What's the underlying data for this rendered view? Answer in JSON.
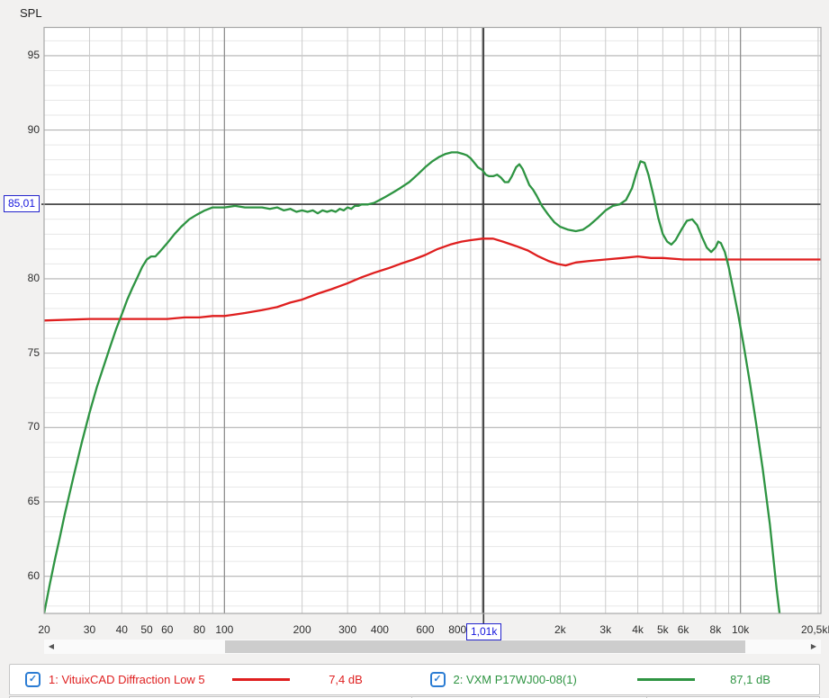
{
  "chart_data": {
    "type": "line",
    "title": "SPL",
    "x_axis": {
      "scale": "log",
      "unit": "Hz",
      "min": 20,
      "max": 20500,
      "tick_labels": [
        {
          "f": 20,
          "label": "20"
        },
        {
          "f": 30,
          "label": "30"
        },
        {
          "f": 40,
          "label": "40"
        },
        {
          "f": 50,
          "label": "50"
        },
        {
          "f": 60,
          "label": "60"
        },
        {
          "f": 80,
          "label": "80"
        },
        {
          "f": 100,
          "label": "100"
        },
        {
          "f": 200,
          "label": "200"
        },
        {
          "f": 300,
          "label": "300"
        },
        {
          "f": 400,
          "label": "400"
        },
        {
          "f": 600,
          "label": "600"
        },
        {
          "f": 800,
          "label": "800"
        },
        {
          "f": 2000,
          "label": "2k"
        },
        {
          "f": 3000,
          "label": "3k"
        },
        {
          "f": 4000,
          "label": "4k"
        },
        {
          "f": 5000,
          "label": "5k"
        },
        {
          "f": 6000,
          "label": "6k"
        },
        {
          "f": 8000,
          "label": "8k"
        },
        {
          "f": 10000,
          "label": "10k"
        },
        {
          "f": 20500,
          "label": "20,5kHz"
        }
      ],
      "major_gridlines": [
        100,
        1000,
        10000
      ]
    },
    "y_axis": {
      "label": "SPL",
      "min": 57.5,
      "max": 96.9,
      "minor_step": 1,
      "major_step": 5,
      "tick_labels": [
        {
          "v": 95,
          "label": "95"
        },
        {
          "v": 90,
          "label": "90"
        },
        {
          "v": 80,
          "label": "80"
        },
        {
          "v": 75,
          "label": "75"
        },
        {
          "v": 70,
          "label": "70"
        },
        {
          "v": 65,
          "label": "65"
        },
        {
          "v": 60,
          "label": "60"
        }
      ]
    },
    "crosshair": {
      "freq": 1010,
      "freq_label": "1,01k",
      "spl": 85.01,
      "spl_label": "85,01",
      "color": "#3c3c3c"
    },
    "series": [
      {
        "id": "1",
        "name": "1: VituixCAD Diffraction Low 5",
        "color": "#df1f1f",
        "value": "7,4 dB",
        "checked": true,
        "points": [
          [
            20,
            77.2
          ],
          [
            30,
            77.3
          ],
          [
            40,
            77.3
          ],
          [
            50,
            77.3
          ],
          [
            60,
            77.3
          ],
          [
            70,
            77.4
          ],
          [
            80,
            77.4
          ],
          [
            90,
            77.5
          ],
          [
            100,
            77.5
          ],
          [
            110,
            77.6
          ],
          [
            120,
            77.7
          ],
          [
            140,
            77.9
          ],
          [
            160,
            78.1
          ],
          [
            180,
            78.4
          ],
          [
            200,
            78.6
          ],
          [
            230,
            79.0
          ],
          [
            260,
            79.3
          ],
          [
            300,
            79.7
          ],
          [
            340,
            80.1
          ],
          [
            380,
            80.4
          ],
          [
            430,
            80.7
          ],
          [
            480,
            81.0
          ],
          [
            540,
            81.3
          ],
          [
            600,
            81.6
          ],
          [
            670,
            82.0
          ],
          [
            750,
            82.3
          ],
          [
            830,
            82.5
          ],
          [
            900,
            82.6
          ],
          [
            1000,
            82.7
          ],
          [
            1100,
            82.7
          ],
          [
            1200,
            82.5
          ],
          [
            1350,
            82.2
          ],
          [
            1500,
            81.9
          ],
          [
            1650,
            81.5
          ],
          [
            1800,
            81.2
          ],
          [
            1950,
            81.0
          ],
          [
            2100,
            80.9
          ],
          [
            2300,
            81.1
          ],
          [
            2600,
            81.2
          ],
          [
            3000,
            81.3
          ],
          [
            3500,
            81.4
          ],
          [
            4000,
            81.5
          ],
          [
            4500,
            81.4
          ],
          [
            5000,
            81.4
          ],
          [
            6000,
            81.3
          ],
          [
            7000,
            81.3
          ],
          [
            8000,
            81.3
          ],
          [
            9000,
            81.3
          ],
          [
            10000,
            81.3
          ],
          [
            12000,
            81.3
          ],
          [
            15000,
            81.3
          ],
          [
            20500,
            81.3
          ]
        ]
      },
      {
        "id": "2",
        "name": "2: VXM P17WJ00-08(1)",
        "color": "#2e9442",
        "value": "87,1 dB",
        "checked": true,
        "points": [
          [
            20,
            57.5
          ],
          [
            21,
            59.4
          ],
          [
            22,
            61.1
          ],
          [
            23,
            62.6
          ],
          [
            24,
            64.1
          ],
          [
            26,
            66.7
          ],
          [
            28,
            69.0
          ],
          [
            30,
            71.0
          ],
          [
            32,
            72.7
          ],
          [
            34,
            74.1
          ],
          [
            36,
            75.4
          ],
          [
            38,
            76.6
          ],
          [
            40,
            77.6
          ],
          [
            42,
            78.6
          ],
          [
            44,
            79.4
          ],
          [
            46,
            80.1
          ],
          [
            48,
            80.8
          ],
          [
            50,
            81.3
          ],
          [
            52,
            81.5
          ],
          [
            54,
            81.5
          ],
          [
            56,
            81.8
          ],
          [
            60,
            82.4
          ],
          [
            64,
            83.0
          ],
          [
            68,
            83.5
          ],
          [
            73,
            84.0
          ],
          [
            78,
            84.3
          ],
          [
            84,
            84.6
          ],
          [
            90,
            84.8
          ],
          [
            100,
            84.8
          ],
          [
            110,
            84.9
          ],
          [
            120,
            84.8
          ],
          [
            130,
            84.8
          ],
          [
            140,
            84.8
          ],
          [
            150,
            84.7
          ],
          [
            160,
            84.8
          ],
          [
            170,
            84.6
          ],
          [
            180,
            84.7
          ],
          [
            190,
            84.5
          ],
          [
            200,
            84.6
          ],
          [
            210,
            84.5
          ],
          [
            220,
            84.6
          ],
          [
            230,
            84.4
          ],
          [
            240,
            84.6
          ],
          [
            250,
            84.5
          ],
          [
            260,
            84.6
          ],
          [
            270,
            84.5
          ],
          [
            280,
            84.7
          ],
          [
            290,
            84.6
          ],
          [
            300,
            84.8
          ],
          [
            310,
            84.7
          ],
          [
            320,
            84.9
          ],
          [
            330,
            84.9
          ],
          [
            340,
            85.0
          ],
          [
            360,
            85.0
          ],
          [
            380,
            85.1
          ],
          [
            400,
            85.3
          ],
          [
            420,
            85.5
          ],
          [
            450,
            85.8
          ],
          [
            480,
            86.1
          ],
          [
            520,
            86.5
          ],
          [
            560,
            87.0
          ],
          [
            600,
            87.5
          ],
          [
            640,
            87.9
          ],
          [
            680,
            88.2
          ],
          [
            720,
            88.4
          ],
          [
            760,
            88.5
          ],
          [
            800,
            88.5
          ],
          [
            840,
            88.4
          ],
          [
            870,
            88.3
          ],
          [
            900,
            88.1
          ],
          [
            930,
            87.8
          ],
          [
            960,
            87.5
          ],
          [
            1000,
            87.3
          ],
          [
            1030,
            87.0
          ],
          [
            1060,
            86.9
          ],
          [
            1100,
            86.9
          ],
          [
            1140,
            87.0
          ],
          [
            1180,
            86.8
          ],
          [
            1220,
            86.5
          ],
          [
            1260,
            86.5
          ],
          [
            1300,
            86.9
          ],
          [
            1350,
            87.5
          ],
          [
            1390,
            87.7
          ],
          [
            1430,
            87.4
          ],
          [
            1470,
            86.9
          ],
          [
            1520,
            86.3
          ],
          [
            1570,
            86.0
          ],
          [
            1620,
            85.6
          ],
          [
            1700,
            84.9
          ],
          [
            1800,
            84.3
          ],
          [
            1900,
            83.8
          ],
          [
            2000,
            83.5
          ],
          [
            2150,
            83.3
          ],
          [
            2300,
            83.2
          ],
          [
            2450,
            83.3
          ],
          [
            2600,
            83.6
          ],
          [
            2800,
            84.1
          ],
          [
            3000,
            84.6
          ],
          [
            3200,
            84.9
          ],
          [
            3400,
            85.0
          ],
          [
            3600,
            85.3
          ],
          [
            3800,
            86.1
          ],
          [
            3950,
            87.1
          ],
          [
            4100,
            87.9
          ],
          [
            4250,
            87.8
          ],
          [
            4400,
            87.0
          ],
          [
            4600,
            85.6
          ],
          [
            4800,
            84.1
          ],
          [
            5000,
            83.0
          ],
          [
            5200,
            82.5
          ],
          [
            5400,
            82.3
          ],
          [
            5600,
            82.6
          ],
          [
            5900,
            83.3
          ],
          [
            6200,
            83.9
          ],
          [
            6500,
            84.0
          ],
          [
            6800,
            83.6
          ],
          [
            7100,
            82.8
          ],
          [
            7400,
            82.1
          ],
          [
            7700,
            81.8
          ],
          [
            8000,
            82.1
          ],
          [
            8200,
            82.5
          ],
          [
            8400,
            82.4
          ],
          [
            8700,
            81.8
          ],
          [
            9000,
            80.8
          ],
          [
            9400,
            79.2
          ],
          [
            9800,
            77.6
          ],
          [
            10300,
            75.5
          ],
          [
            10900,
            72.9
          ],
          [
            11500,
            70.3
          ],
          [
            12200,
            67.2
          ],
          [
            13000,
            63.5
          ],
          [
            13800,
            59.2
          ],
          [
            14200,
            57.4
          ]
        ]
      }
    ],
    "grid": {
      "minor_color": "#e7e7e7",
      "v_minor_color": "#cbcbcb",
      "major_color": "#b2b2b2",
      "decade_color": "#8f8f8f",
      "frame_color": "#a8a8a8",
      "plot_bg": "#ffffff"
    }
  },
  "scrollbar": {
    "left_arrow": "◀",
    "right_arrow": "▶"
  },
  "legend": {
    "checkmark": "✓"
  }
}
